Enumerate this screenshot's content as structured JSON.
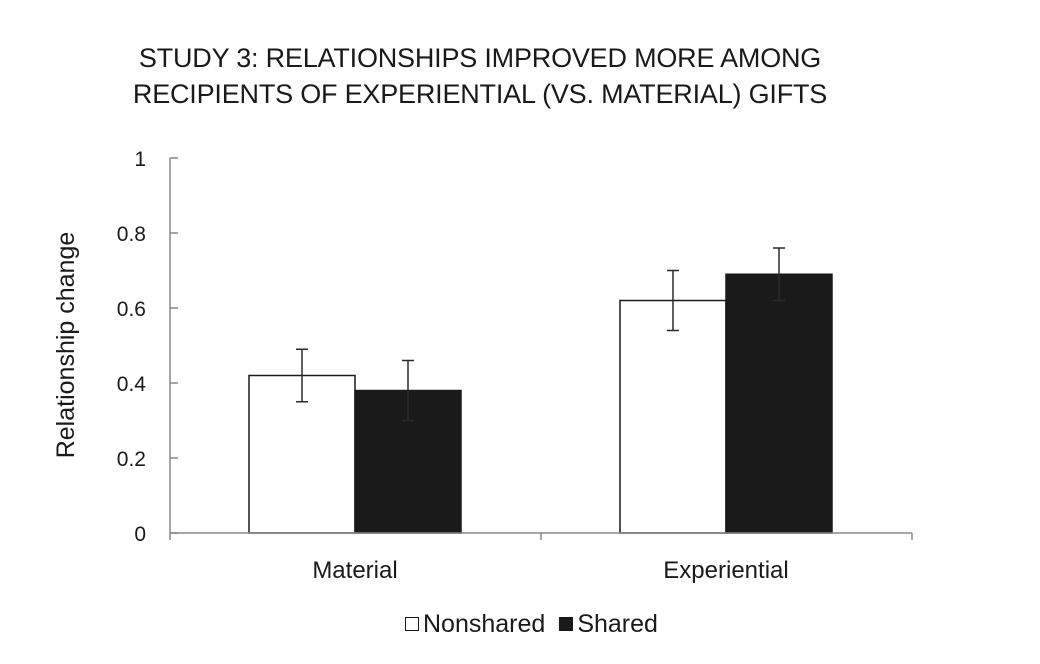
{
  "chart_data": {
    "type": "bar",
    "title_lines": [
      "STUDY 3: RELATIONSHIPS IMPROVED MORE AMONG",
      "RECIPIENTS OF EXPERIENTIAL (VS. MATERIAL) GIFTS"
    ],
    "xlabel": "",
    "ylabel": "Relationship change",
    "categories": [
      "Material",
      "Experiential"
    ],
    "series": [
      {
        "name": "Nonshared",
        "color": "#ffffff",
        "values": [
          0.42,
          0.62
        ],
        "errors": [
          0.07,
          0.08
        ]
      },
      {
        "name": "Shared",
        "color": "#1a1a1a",
        "values": [
          0.38,
          0.69
        ],
        "errors": [
          0.08,
          0.07
        ]
      }
    ],
    "ylim": [
      0,
      1
    ],
    "yticks": [
      0,
      0.2,
      0.4,
      0.6,
      0.8,
      1
    ],
    "ytick_labels": [
      "0",
      "0.2",
      "0.4",
      "0.6",
      "0.8",
      "1"
    ],
    "grid": false,
    "legend": "bottom-center"
  }
}
